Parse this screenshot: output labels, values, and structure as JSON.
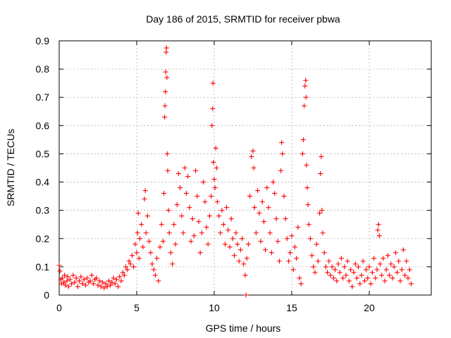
{
  "chart_data": {
    "type": "scatter",
    "title": "Day 186 of 2015, SRMTID for receiver pbwa",
    "xlabel": "GPS time / hours",
    "ylabel": "SRMTID / TECUs",
    "xlim": [
      0,
      24
    ],
    "ylim": [
      0,
      0.9
    ],
    "xticks": [
      0,
      5,
      10,
      15,
      20
    ],
    "yticks": [
      0,
      0.1,
      0.2,
      0.3,
      0.4,
      0.5,
      0.6,
      0.7,
      0.8,
      0.9
    ],
    "xtick_labels": [
      "0",
      "5",
      "10",
      "15",
      "20"
    ],
    "ytick_labels": [
      "0",
      "0.1",
      "0.2",
      "0.3",
      "0.4",
      "0.5",
      "0.6",
      "0.7",
      "0.8",
      "0.9"
    ],
    "grid": true,
    "marker": "+",
    "color": "#ff0000",
    "series": [
      {
        "name": "SRMTID",
        "points": [
          [
            0.0,
            0.105
          ],
          [
            0.05,
            0.085
          ],
          [
            0.1,
            0.055
          ],
          [
            0.15,
            0.04
          ],
          [
            0.2,
            0.06
          ],
          [
            0.3,
            0.045
          ],
          [
            0.35,
            0.07
          ],
          [
            0.4,
            0.035
          ],
          [
            0.5,
            0.05
          ],
          [
            0.55,
            0.065
          ],
          [
            0.6,
            0.03
          ],
          [
            0.7,
            0.055
          ],
          [
            0.8,
            0.04
          ],
          [
            0.9,
            0.07
          ],
          [
            1.0,
            0.045
          ],
          [
            1.1,
            0.06
          ],
          [
            1.2,
            0.03
          ],
          [
            1.3,
            0.05
          ],
          [
            1.4,
            0.065
          ],
          [
            1.5,
            0.04
          ],
          [
            1.6,
            0.055
          ],
          [
            1.7,
            0.035
          ],
          [
            1.8,
            0.06
          ],
          [
            1.9,
            0.045
          ],
          [
            2.0,
            0.05
          ],
          [
            2.1,
            0.07
          ],
          [
            2.2,
            0.04
          ],
          [
            2.3,
            0.055
          ],
          [
            2.4,
            0.06
          ],
          [
            2.5,
            0.035
          ],
          [
            2.6,
            0.05
          ],
          [
            2.7,
            0.03
          ],
          [
            2.8,
            0.045
          ],
          [
            2.9,
            0.025
          ],
          [
            3.0,
            0.04
          ],
          [
            3.1,
            0.03
          ],
          [
            3.2,
            0.05
          ],
          [
            3.3,
            0.035
          ],
          [
            3.4,
            0.045
          ],
          [
            3.5,
            0.06
          ],
          [
            3.6,
            0.04
          ],
          [
            3.7,
            0.055
          ],
          [
            3.8,
            0.03
          ],
          [
            3.9,
            0.065
          ],
          [
            4.0,
            0.05
          ],
          [
            4.1,
            0.08
          ],
          [
            4.2,
            0.07
          ],
          [
            4.3,
            0.1
          ],
          [
            4.4,
            0.09
          ],
          [
            4.5,
            0.12
          ],
          [
            4.6,
            0.11
          ],
          [
            4.7,
            0.14
          ],
          [
            4.8,
            0.1
          ],
          [
            4.9,
            0.18
          ],
          [
            5.0,
            0.15
          ],
          [
            5.05,
            0.22
          ],
          [
            5.1,
            0.29
          ],
          [
            5.15,
            0.13
          ],
          [
            5.2,
            0.2
          ],
          [
            5.3,
            0.25
          ],
          [
            5.4,
            0.17
          ],
          [
            5.5,
            0.34
          ],
          [
            5.55,
            0.37
          ],
          [
            5.6,
            0.22
          ],
          [
            5.7,
            0.28
          ],
          [
            5.8,
            0.19
          ],
          [
            5.9,
            0.15
          ],
          [
            6.0,
            0.11
          ],
          [
            6.1,
            0.09
          ],
          [
            6.2,
            0.07
          ],
          [
            6.3,
            0.13
          ],
          [
            6.4,
            0.05
          ],
          [
            6.5,
            0.17
          ],
          [
            6.6,
            0.25
          ],
          [
            6.7,
            0.19
          ],
          [
            6.75,
            0.36
          ],
          [
            6.8,
            0.63
          ],
          [
            6.82,
            0.67
          ],
          [
            6.85,
            0.72
          ],
          [
            6.87,
            0.79
          ],
          [
            6.9,
            0.86
          ],
          [
            6.92,
            0.875
          ],
          [
            6.95,
            0.77
          ],
          [
            6.97,
            0.5
          ],
          [
            7.0,
            0.44
          ],
          [
            7.05,
            0.3
          ],
          [
            7.1,
            0.22
          ],
          [
            7.2,
            0.15
          ],
          [
            7.3,
            0.11
          ],
          [
            7.4,
            0.25
          ],
          [
            7.5,
            0.18
          ],
          [
            7.6,
            0.32
          ],
          [
            7.7,
            0.43
          ],
          [
            7.8,
            0.38
          ],
          [
            7.9,
            0.28
          ],
          [
            8.0,
            0.22
          ],
          [
            8.1,
            0.45
          ],
          [
            8.2,
            0.36
          ],
          [
            8.3,
            0.42
          ],
          [
            8.4,
            0.31
          ],
          [
            8.5,
            0.19
          ],
          [
            8.6,
            0.27
          ],
          [
            8.7,
            0.21
          ],
          [
            8.8,
            0.44
          ],
          [
            8.9,
            0.35
          ],
          [
            9.0,
            0.26
          ],
          [
            9.1,
            0.15
          ],
          [
            9.2,
            0.22
          ],
          [
            9.3,
            0.4
          ],
          [
            9.4,
            0.33
          ],
          [
            9.5,
            0.24
          ],
          [
            9.6,
            0.18
          ],
          [
            9.7,
            0.28
          ],
          [
            9.8,
            0.35
          ],
          [
            9.85,
            0.6
          ],
          [
            9.9,
            0.66
          ],
          [
            9.92,
            0.75
          ],
          [
            9.95,
            0.47
          ],
          [
            10.0,
            0.41
          ],
          [
            10.05,
            0.38
          ],
          [
            10.1,
            0.52
          ],
          [
            10.15,
            0.45
          ],
          [
            10.2,
            0.33
          ],
          [
            10.3,
            0.28
          ],
          [
            10.4,
            0.22
          ],
          [
            10.5,
            0.3
          ],
          [
            10.6,
            0.25
          ],
          [
            10.7,
            0.18
          ],
          [
            10.8,
            0.31
          ],
          [
            10.9,
            0.23
          ],
          [
            11.0,
            0.17
          ],
          [
            11.1,
            0.27
          ],
          [
            11.2,
            0.2
          ],
          [
            11.3,
            0.14
          ],
          [
            11.4,
            0.22
          ],
          [
            11.5,
            0.18
          ],
          [
            11.6,
            0.12
          ],
          [
            11.7,
            0.16
          ],
          [
            11.8,
            0.2
          ],
          [
            11.9,
            0.11
          ],
          [
            12.0,
            0.07
          ],
          [
            12.05,
            0.0
          ],
          [
            12.1,
            0.13
          ],
          [
            12.2,
            0.18
          ],
          [
            12.3,
            0.35
          ],
          [
            12.4,
            0.49
          ],
          [
            12.5,
            0.51
          ],
          [
            12.55,
            0.45
          ],
          [
            12.6,
            0.31
          ],
          [
            12.7,
            0.22
          ],
          [
            12.8,
            0.37
          ],
          [
            12.9,
            0.29
          ],
          [
            13.0,
            0.19
          ],
          [
            13.1,
            0.33
          ],
          [
            13.2,
            0.26
          ],
          [
            13.3,
            0.16
          ],
          [
            13.4,
            0.38
          ],
          [
            13.5,
            0.31
          ],
          [
            13.6,
            0.22
          ],
          [
            13.7,
            0.15
          ],
          [
            13.8,
            0.4
          ],
          [
            13.9,
            0.36
          ],
          [
            14.0,
            0.27
          ],
          [
            14.1,
            0.19
          ],
          [
            14.2,
            0.12
          ],
          [
            14.3,
            0.44
          ],
          [
            14.35,
            0.54
          ],
          [
            14.4,
            0.5
          ],
          [
            14.5,
            0.35
          ],
          [
            14.6,
            0.27
          ],
          [
            14.7,
            0.2
          ],
          [
            14.8,
            0.12
          ],
          [
            14.9,
            0.15
          ],
          [
            15.0,
            0.21
          ],
          [
            15.1,
            0.09
          ],
          [
            15.2,
            0.17
          ],
          [
            15.3,
            0.13
          ],
          [
            15.4,
            0.24
          ],
          [
            15.5,
            0.06
          ],
          [
            15.6,
            0.04
          ],
          [
            15.7,
            0.5
          ],
          [
            15.75,
            0.55
          ],
          [
            15.8,
            0.67
          ],
          [
            15.85,
            0.74
          ],
          [
            15.9,
            0.76
          ],
          [
            15.92,
            0.7
          ],
          [
            15.95,
            0.46
          ],
          [
            16.0,
            0.38
          ],
          [
            16.05,
            0.32
          ],
          [
            16.1,
            0.25
          ],
          [
            16.2,
            0.2
          ],
          [
            16.3,
            0.14
          ],
          [
            16.4,
            0.1
          ],
          [
            16.5,
            0.08
          ],
          [
            16.6,
            0.18
          ],
          [
            16.7,
            0.12
          ],
          [
            16.8,
            0.29
          ],
          [
            16.85,
            0.43
          ],
          [
            16.9,
            0.49
          ],
          [
            16.95,
            0.3
          ],
          [
            17.0,
            0.22
          ],
          [
            17.1,
            0.15
          ],
          [
            17.2,
            0.1
          ],
          [
            17.3,
            0.08
          ],
          [
            17.4,
            0.12
          ],
          [
            17.5,
            0.07
          ],
          [
            17.6,
            0.1
          ],
          [
            17.7,
            0.06
          ],
          [
            17.8,
            0.09
          ],
          [
            17.9,
            0.05
          ],
          [
            18.0,
            0.11
          ],
          [
            18.1,
            0.08
          ],
          [
            18.2,
            0.13
          ],
          [
            18.3,
            0.06
          ],
          [
            18.4,
            0.1
          ],
          [
            18.5,
            0.07
          ],
          [
            18.6,
            0.12
          ],
          [
            18.7,
            0.05
          ],
          [
            18.8,
            0.09
          ],
          [
            18.9,
            0.03
          ],
          [
            19.0,
            0.08
          ],
          [
            19.1,
            0.11
          ],
          [
            19.2,
            0.06
          ],
          [
            19.3,
            0.1
          ],
          [
            19.4,
            0.04
          ],
          [
            19.5,
            0.07
          ],
          [
            19.6,
            0.12
          ],
          [
            19.7,
            0.05
          ],
          [
            19.8,
            0.09
          ],
          [
            19.9,
            0.06
          ],
          [
            20.0,
            0.1
          ],
          [
            20.1,
            0.04
          ],
          [
            20.2,
            0.08
          ],
          [
            20.3,
            0.13
          ],
          [
            20.4,
            0.06
          ],
          [
            20.5,
            0.09
          ],
          [
            20.55,
            0.23
          ],
          [
            20.6,
            0.25
          ],
          [
            20.65,
            0.21
          ],
          [
            20.7,
            0.11
          ],
          [
            20.8,
            0.07
          ],
          [
            20.9,
            0.13
          ],
          [
            21.0,
            0.05
          ],
          [
            21.1,
            0.09
          ],
          [
            21.2,
            0.14
          ],
          [
            21.3,
            0.07
          ],
          [
            21.4,
            0.11
          ],
          [
            21.5,
            0.06
          ],
          [
            21.6,
            0.1
          ],
          [
            21.7,
            0.15
          ],
          [
            21.8,
            0.08
          ],
          [
            21.9,
            0.12
          ],
          [
            22.0,
            0.05
          ],
          [
            22.1,
            0.09
          ],
          [
            22.2,
            0.16
          ],
          [
            22.3,
            0.07
          ],
          [
            22.4,
            0.12
          ],
          [
            22.5,
            0.06
          ],
          [
            22.6,
            0.09
          ],
          [
            22.7,
            0.04
          ]
        ]
      }
    ]
  }
}
